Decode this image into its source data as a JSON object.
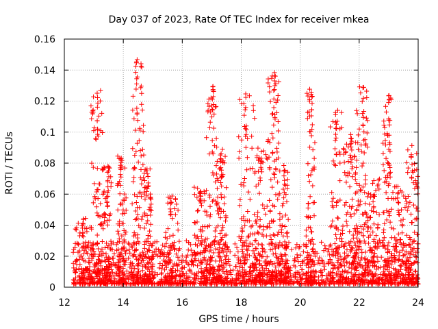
{
  "chart_data": {
    "type": "scatter",
    "title": "Day 037 of 2023, Rate Of TEC Index for receiver mkea",
    "xlabel": "GPS time / hours",
    "ylabel": "ROTI / TECUs",
    "xlim": [
      12,
      24
    ],
    "ylim": [
      0,
      0.16
    ],
    "x_ticks": [
      12,
      14,
      16,
      18,
      20,
      22,
      24
    ],
    "x_tick_labels": [
      "12",
      "14",
      "16",
      "18",
      "20",
      "22",
      "24"
    ],
    "y_ticks": [
      0,
      0.02,
      0.04,
      0.06,
      0.08,
      0.1,
      0.12,
      0.14,
      0.16
    ],
    "y_tick_labels": [
      "0",
      "0.02",
      "0.04",
      "0.06",
      "0.08",
      "0.1",
      "0.12",
      "0.14",
      "0.16"
    ],
    "grid": true,
    "marker": "plus",
    "color": "#ff0000",
    "series": [
      {
        "name": "ROTI",
        "x_range": [
          12.3,
          24.0
        ],
        "baseline_range": [
          0.002,
          0.03
        ],
        "bursts": [
          {
            "x_start": 12.3,
            "x_end": 12.9,
            "peak": 0.045
          },
          {
            "x_start": 12.9,
            "x_end": 13.3,
            "peak": 0.128
          },
          {
            "x_start": 13.3,
            "x_end": 13.6,
            "peak": 0.08
          },
          {
            "x_start": 13.8,
            "x_end": 14.1,
            "peak": 0.085
          },
          {
            "x_start": 14.3,
            "x_end": 14.7,
            "peak": 0.152
          },
          {
            "x_start": 14.7,
            "x_end": 15.0,
            "peak": 0.08
          },
          {
            "x_start": 15.4,
            "x_end": 15.9,
            "peak": 0.06
          },
          {
            "x_start": 16.4,
            "x_end": 16.8,
            "peak": 0.065
          },
          {
            "x_start": 16.8,
            "x_end": 17.2,
            "peak": 0.13
          },
          {
            "x_start": 17.2,
            "x_end": 17.5,
            "peak": 0.09
          },
          {
            "x_start": 17.9,
            "x_end": 18.5,
            "peak": 0.125
          },
          {
            "x_start": 18.5,
            "x_end": 18.9,
            "peak": 0.09
          },
          {
            "x_start": 18.9,
            "x_end": 19.3,
            "peak": 0.143
          },
          {
            "x_start": 19.3,
            "x_end": 19.6,
            "peak": 0.08
          },
          {
            "x_start": 20.2,
            "x_end": 20.5,
            "peak": 0.128
          },
          {
            "x_start": 21.0,
            "x_end": 21.5,
            "peak": 0.115
          },
          {
            "x_start": 21.5,
            "x_end": 21.9,
            "peak": 0.1
          },
          {
            "x_start": 21.9,
            "x_end": 22.3,
            "peak": 0.13
          },
          {
            "x_start": 22.3,
            "x_end": 22.7,
            "peak": 0.07
          },
          {
            "x_start": 22.8,
            "x_end": 23.1,
            "peak": 0.124
          },
          {
            "x_start": 23.1,
            "x_end": 23.6,
            "peak": 0.065
          },
          {
            "x_start": 23.6,
            "x_end": 24.0,
            "peak": 0.093
          }
        ]
      }
    ]
  }
}
